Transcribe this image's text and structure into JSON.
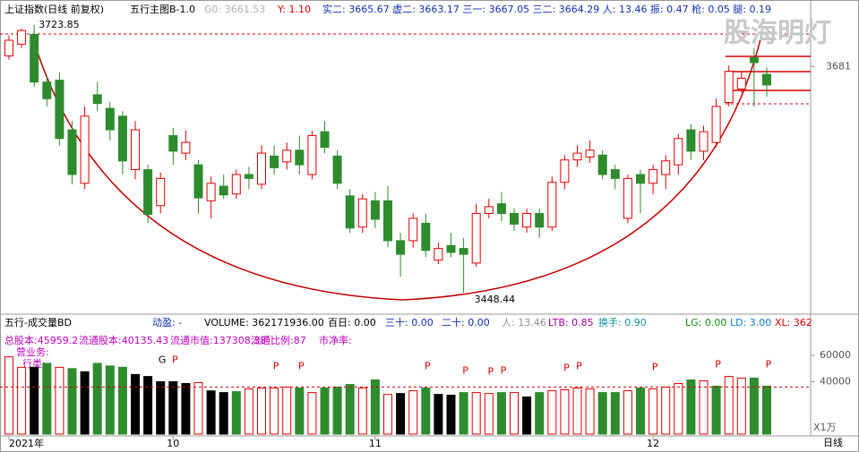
{
  "chart_data": [
    {
      "type": "candlestick",
      "title": "上证指数(日线 前复权)",
      "info": [
        {
          "text": "五行主图B-1.0",
          "color": "#000000"
        },
        {
          "text": "G0: 3661.53",
          "color": "#b0b0b0"
        },
        {
          "text": "Y: 1.10",
          "color": "#d00000"
        },
        {
          "text": "实二: 3665.67 虚二: 3663.17 三一: 3667.05 三二: 3664.29 人: 13.46 振: 0.47 枪: 0.05 腿: 0.19",
          "color": "#1030b0"
        }
      ],
      "watermark": "股海明灯",
      "period": "日线",
      "categories": [
        "2021年",
        null,
        null,
        null,
        null,
        null,
        null,
        null,
        null,
        null,
        null,
        null,
        null,
        "10",
        null,
        null,
        null,
        null,
        null,
        null,
        null,
        null,
        null,
        null,
        null,
        null,
        null,
        null,
        null,
        "11",
        null,
        null,
        null,
        null,
        null,
        null,
        null,
        null,
        null,
        null,
        null,
        null,
        null,
        null,
        null,
        null,
        null,
        null,
        null,
        null,
        null,
        "12",
        null,
        null,
        null,
        null,
        null,
        null,
        null,
        null,
        null
      ],
      "open": [
        3692,
        3704,
        3714,
        3665,
        3667,
        3616,
        3561,
        3652,
        3638,
        3630,
        3575,
        3575,
        3538,
        3610,
        3592,
        3580,
        3543,
        3558,
        3550,
        3570,
        3560,
        3589,
        3583,
        3595,
        3570,
        3614,
        3589,
        3548,
        3516,
        3543,
        3543,
        3502,
        3502,
        3520,
        3482,
        3497,
        3494,
        3479,
        3530,
        3540,
        3530,
        3516,
        3530,
        3516,
        3562,
        3585,
        3588,
        3590,
        3575,
        3525,
        3570,
        3561,
        3570,
        3580,
        3616,
        3594,
        3603,
        3644,
        3658,
        3690,
        3673
      ],
      "high": [
        3713,
        3720,
        3723.85,
        3672,
        3675,
        3625,
        3640,
        3665,
        3645,
        3635,
        3625,
        3580,
        3572,
        3618,
        3615,
        3585,
        3568,
        3570,
        3575,
        3578,
        3600,
        3600,
        3603,
        3610,
        3615,
        3625,
        3595,
        3555,
        3550,
        3552,
        3558,
        3510,
        3530,
        3530,
        3500,
        3510,
        3505,
        3540,
        3545,
        3552,
        3535,
        3535,
        3535,
        3568,
        3590,
        3600,
        3605,
        3595,
        3580,
        3570,
        3575,
        3580,
        3590,
        3612,
        3622,
        3620,
        3648,
        3682,
        3676,
        3700,
        3680
      ],
      "low": [
        3688,
        3700,
        3660,
        3640,
        3600,
        3560,
        3555,
        3635,
        3605,
        3570,
        3565,
        3520,
        3530,
        3580,
        3585,
        3530,
        3525,
        3545,
        3545,
        3555,
        3555,
        3570,
        3575,
        3570,
        3565,
        3592,
        3555,
        3510,
        3510,
        3515,
        3495,
        3465,
        3495,
        3485,
        3478,
        3485,
        3448.44,
        3475,
        3525,
        3522,
        3512,
        3510,
        3505,
        3512,
        3555,
        3578,
        3582,
        3565,
        3555,
        3520,
        3530,
        3550,
        3555,
        3570,
        3585,
        3585,
        3598,
        3640,
        3654,
        3640,
        3650
      ],
      "close": [
        3708,
        3718,
        3665,
        3648,
        3607,
        3570,
        3630,
        3643,
        3616,
        3584,
        3616,
        3529,
        3566,
        3594,
        3603,
        3546,
        3561,
        3549,
        3570,
        3566,
        3592,
        3577,
        3595,
        3580,
        3610,
        3598,
        3561,
        3515,
        3545,
        3524,
        3502,
        3488,
        3525,
        3492,
        3494,
        3490,
        3488,
        3530,
        3537,
        3530,
        3519,
        3530,
        3516,
        3562,
        3585,
        3592,
        3595,
        3570,
        3566,
        3566,
        3561,
        3575,
        3584,
        3607,
        3594,
        3614,
        3640,
        3676,
        3669,
        3685,
        3662
      ],
      "up_color": "#e00000",
      "down_color": "#2e8b2e",
      "ylim": [
        3432,
        3731
      ],
      "yticks": [
        3681
      ]
    },
    {
      "type": "bar",
      "title": "五行-成交量BD",
      "info": [
        {
          "text": "动盈: -",
          "color": "#1030b0"
        },
        {
          "text": "VOLUME: 362171936.00",
          "color": "#000000"
        },
        {
          "text": "百日: 0.00",
          "color": "#000000"
        },
        {
          "text": "三十: 0.00",
          "color": "#1030b0"
        },
        {
          "text": "二十: 0.00",
          "color": "#1030b0"
        },
        {
          "text": "人: 13.46",
          "color": "#909090"
        },
        {
          "text": "LTB: 0.85",
          "color": "#a000a0"
        },
        {
          "text": "换手: 0.90",
          "color": "#1090a0"
        },
        {
          "text": "LG: 0.00",
          "color": "#109010"
        },
        {
          "text": "LD: 3.00",
          "color": "#1080d0"
        },
        {
          "text": "XL: 362",
          "color": "#d00000"
        }
      ],
      "fundamentals": [
        "总股本:45959.2",
        "流通股本:40135.43",
        "流通市值:137308.38",
        "流通比例:87",
        "市净率:",
        "营业务:",
        "行类:"
      ],
      "values": [
        59000,
        51000,
        51000,
        54000,
        51000,
        50000,
        47600,
        54000,
        52000,
        51000,
        45500,
        44000,
        40000,
        40000,
        38600,
        39300,
        33000,
        31700,
        32400,
        34500,
        35200,
        35200,
        35900,
        35200,
        31700,
        35200,
        35900,
        37900,
        35200,
        41400,
        30300,
        31000,
        33100,
        35200,
        30300,
        29700,
        31700,
        31700,
        31000,
        31700,
        31700,
        28300,
        31700,
        33100,
        33800,
        35200,
        34500,
        31700,
        31700,
        33100,
        35200,
        34500,
        35900,
        38600,
        41400,
        40700,
        36600,
        44000,
        42800,
        42800,
        36600
      ],
      "colors": [
        "#e00000",
        "#e00000",
        "#000000",
        "#2e8b2e",
        "#e00000",
        "#2e8b2e",
        "#000000",
        "#2e8b2e",
        "#2e8b2e",
        "#2e8b2e",
        "#000000",
        "#000000",
        "#000000",
        "#000000",
        "#000000",
        "#e00000",
        "#000000",
        "#000000",
        "#2e8b2e",
        "#e00000",
        "#e00000",
        "#e00000",
        "#e00000",
        "#2e8b2e",
        "#e00000",
        "#2e8b2e",
        "#2e8b2e",
        "#2e8b2e",
        "#e00000",
        "#2e8b2e",
        "#e00000",
        "#000000",
        "#e00000",
        "#2e8b2e",
        "#000000",
        "#000000",
        "#2e8b2e",
        "#e00000",
        "#e00000",
        "#2e8b2e",
        "#e00000",
        "#000000",
        "#2e8b2e",
        "#e00000",
        "#e00000",
        "#e00000",
        "#e00000",
        "#2e8b2e",
        "#2e8b2e",
        "#e00000",
        "#2e8b2e",
        "#e00000",
        "#e00000",
        "#e00000",
        "#2e8b2e",
        "#e00000",
        "#2e8b2e",
        "#e00000",
        "#e00000",
        "#2e8b2e",
        "#2e8b2e"
      ],
      "signals": [
        null,
        null,
        null,
        null,
        null,
        null,
        null,
        null,
        null,
        null,
        null,
        null,
        "G",
        "P",
        null,
        null,
        null,
        null,
        null,
        null,
        null,
        "P",
        null,
        "P",
        null,
        null,
        null,
        null,
        null,
        null,
        null,
        null,
        null,
        "P",
        null,
        null,
        "P",
        null,
        "P",
        "P",
        null,
        null,
        null,
        null,
        "P",
        "P",
        null,
        null,
        null,
        null,
        null,
        "P",
        null,
        null,
        null,
        null,
        "P",
        null,
        null,
        null,
        "P"
      ],
      "reference_line": 36000,
      "y_unit": "X1万",
      "ylim": [
        0,
        82000
      ],
      "yticks": [
        40000,
        60000
      ]
    }
  ]
}
